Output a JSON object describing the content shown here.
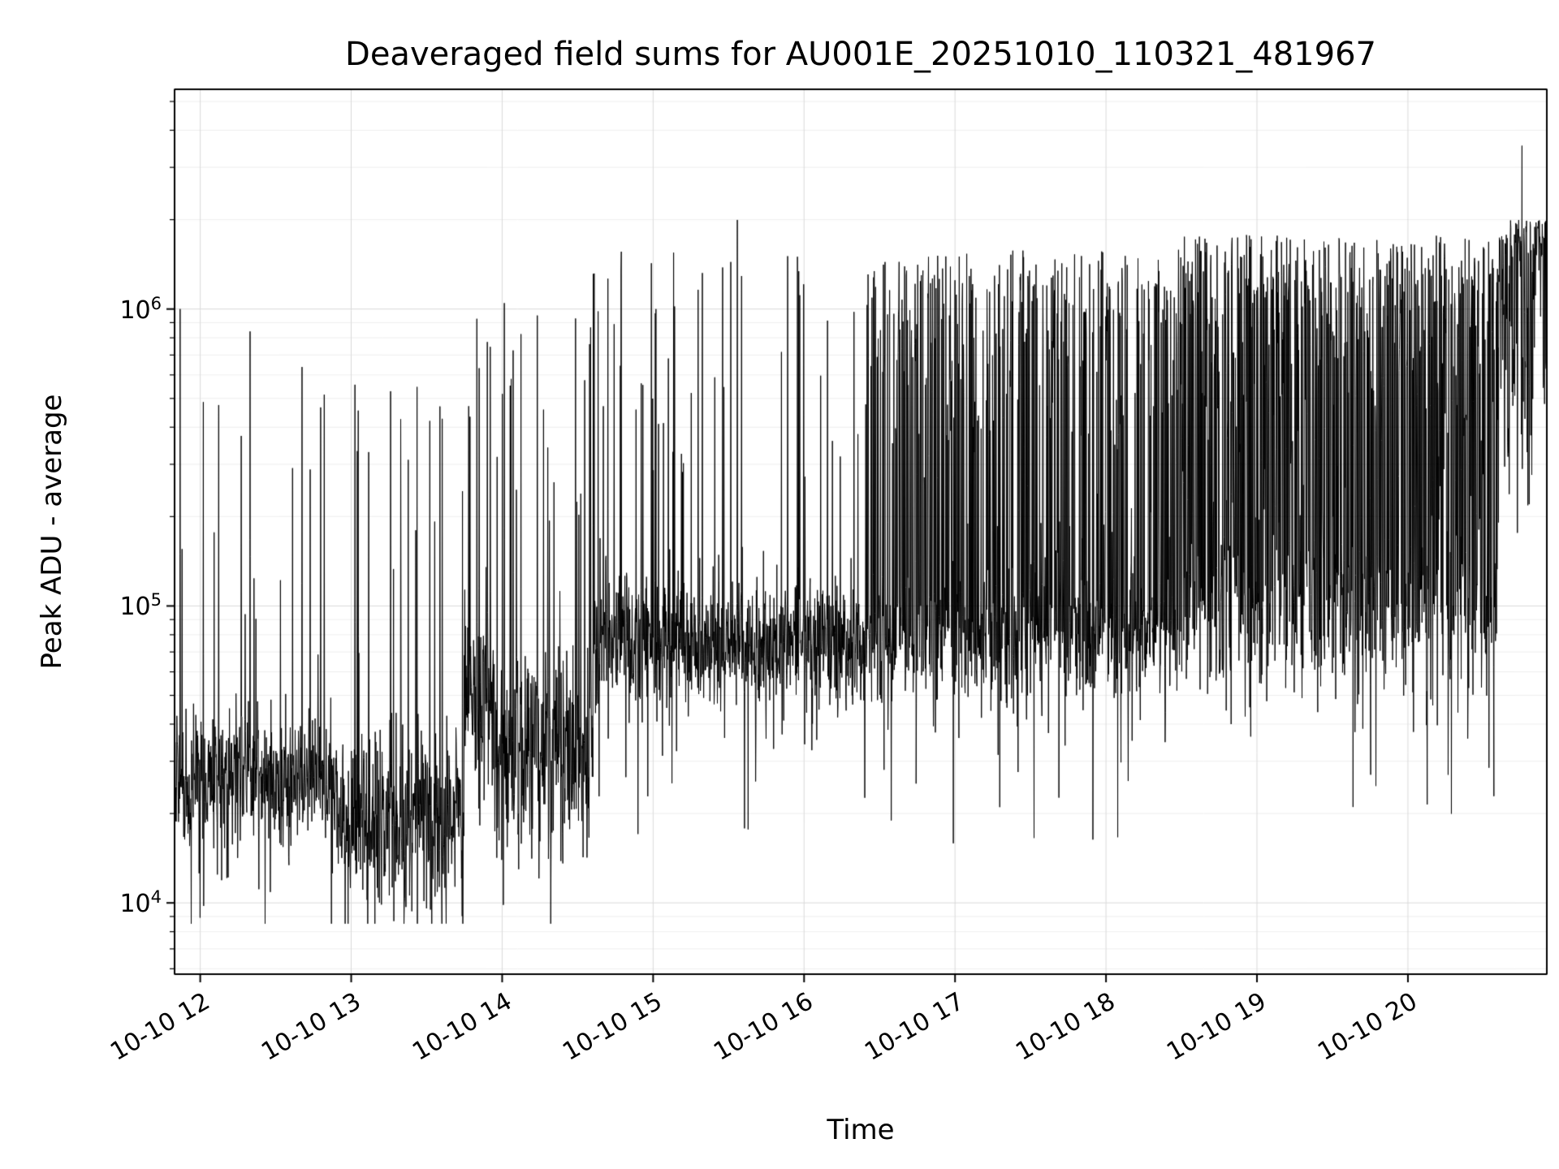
{
  "chart_data": {
    "type": "line",
    "title": "Deaveraged field sums for AU001E_20251010_110321_481967",
    "xlabel": "Time",
    "ylabel": "Peak ADU - average",
    "line_color": "#000000",
    "legend": null,
    "x_axis": {
      "kind": "time",
      "tick_labels": [
        "10-10 12",
        "10-10 13",
        "10-10 14",
        "10-10 15",
        "10-10 16",
        "10-10 17",
        "10-10 18",
        "10-10 19",
        "10-10 20"
      ],
      "tick_hours": [
        12,
        13,
        14,
        15,
        16,
        17,
        18,
        19,
        20
      ],
      "xlim_hours": [
        11.83,
        20.92
      ]
    },
    "y_axis": {
      "kind": "log10",
      "tick_exponents": [
        4,
        5,
        6
      ],
      "tick_base": "10",
      "ylim_log10": [
        3.76,
        6.74
      ]
    },
    "grid": {
      "visible": true,
      "major_color": "#d9d9d9",
      "minor_color": "#eeeeee"
    },
    "series_model": {
      "description": "Noisy log-scale time series: baseline ~2.5e4 ADU before 13:45 with sparse spikes to ~1e6, rising baseline ~7e4-1e5 after 14:30 with spikes to ~1.5e6, dense tall spike mass from ~16:30 onward, climbing to ~1e6 baseline with final spike ~3.5e6 near 20:45",
      "n_points": 4200,
      "segments": [
        {
          "t0": 0.0,
          "t1": 0.118,
          "base": 4.42,
          "noise": 0.12,
          "spike_prob": 0.035,
          "spike_top": 6.0
        },
        {
          "t0": 0.118,
          "t1": 0.211,
          "base": 4.28,
          "noise": 0.14,
          "spike_prob": 0.03,
          "spike_top": 5.75
        },
        {
          "t0": 0.211,
          "t1": 0.233,
          "base": 4.72,
          "noise": 0.15,
          "spike_prob": 0.06,
          "spike_top": 6.08
        },
        {
          "t0": 0.233,
          "t1": 0.305,
          "base": 4.5,
          "noise": 0.18,
          "spike_prob": 0.05,
          "spike_top": 6.05
        },
        {
          "t0": 0.305,
          "t1": 0.349,
          "base": 4.88,
          "noise": 0.13,
          "spike_prob": 0.07,
          "spike_top": 6.2
        },
        {
          "t0": 0.349,
          "t1": 0.503,
          "base": 4.87,
          "noise": 0.11,
          "spike_prob": 0.06,
          "spike_top": 6.2
        },
        {
          "t0": 0.503,
          "t1": 0.525,
          "base": 4.85,
          "noise": 0.12,
          "spike_prob": 0.25,
          "spike_top": 6.18
        },
        {
          "t0": 0.525,
          "t1": 0.734,
          "base": 4.9,
          "noise": 0.12,
          "spike_prob": 0.35,
          "spike_top": 6.2
        },
        {
          "t0": 0.734,
          "t1": 0.965,
          "base": 5.0,
          "noise": 0.16,
          "spike_prob": 0.45,
          "spike_top": 6.25
        },
        {
          "t0": 0.965,
          "t1": 1.001,
          "base": 5.85,
          "noise": 0.2,
          "spike_prob": 0.5,
          "spike_top": 6.3
        }
      ],
      "outliers": [
        {
          "t": 0.004,
          "log10": 6.0
        },
        {
          "t": 0.41,
          "log10": 6.3
        },
        {
          "t": 0.982,
          "log10": 6.55
        }
      ],
      "y_min_log10_observed": 3.95
    }
  }
}
